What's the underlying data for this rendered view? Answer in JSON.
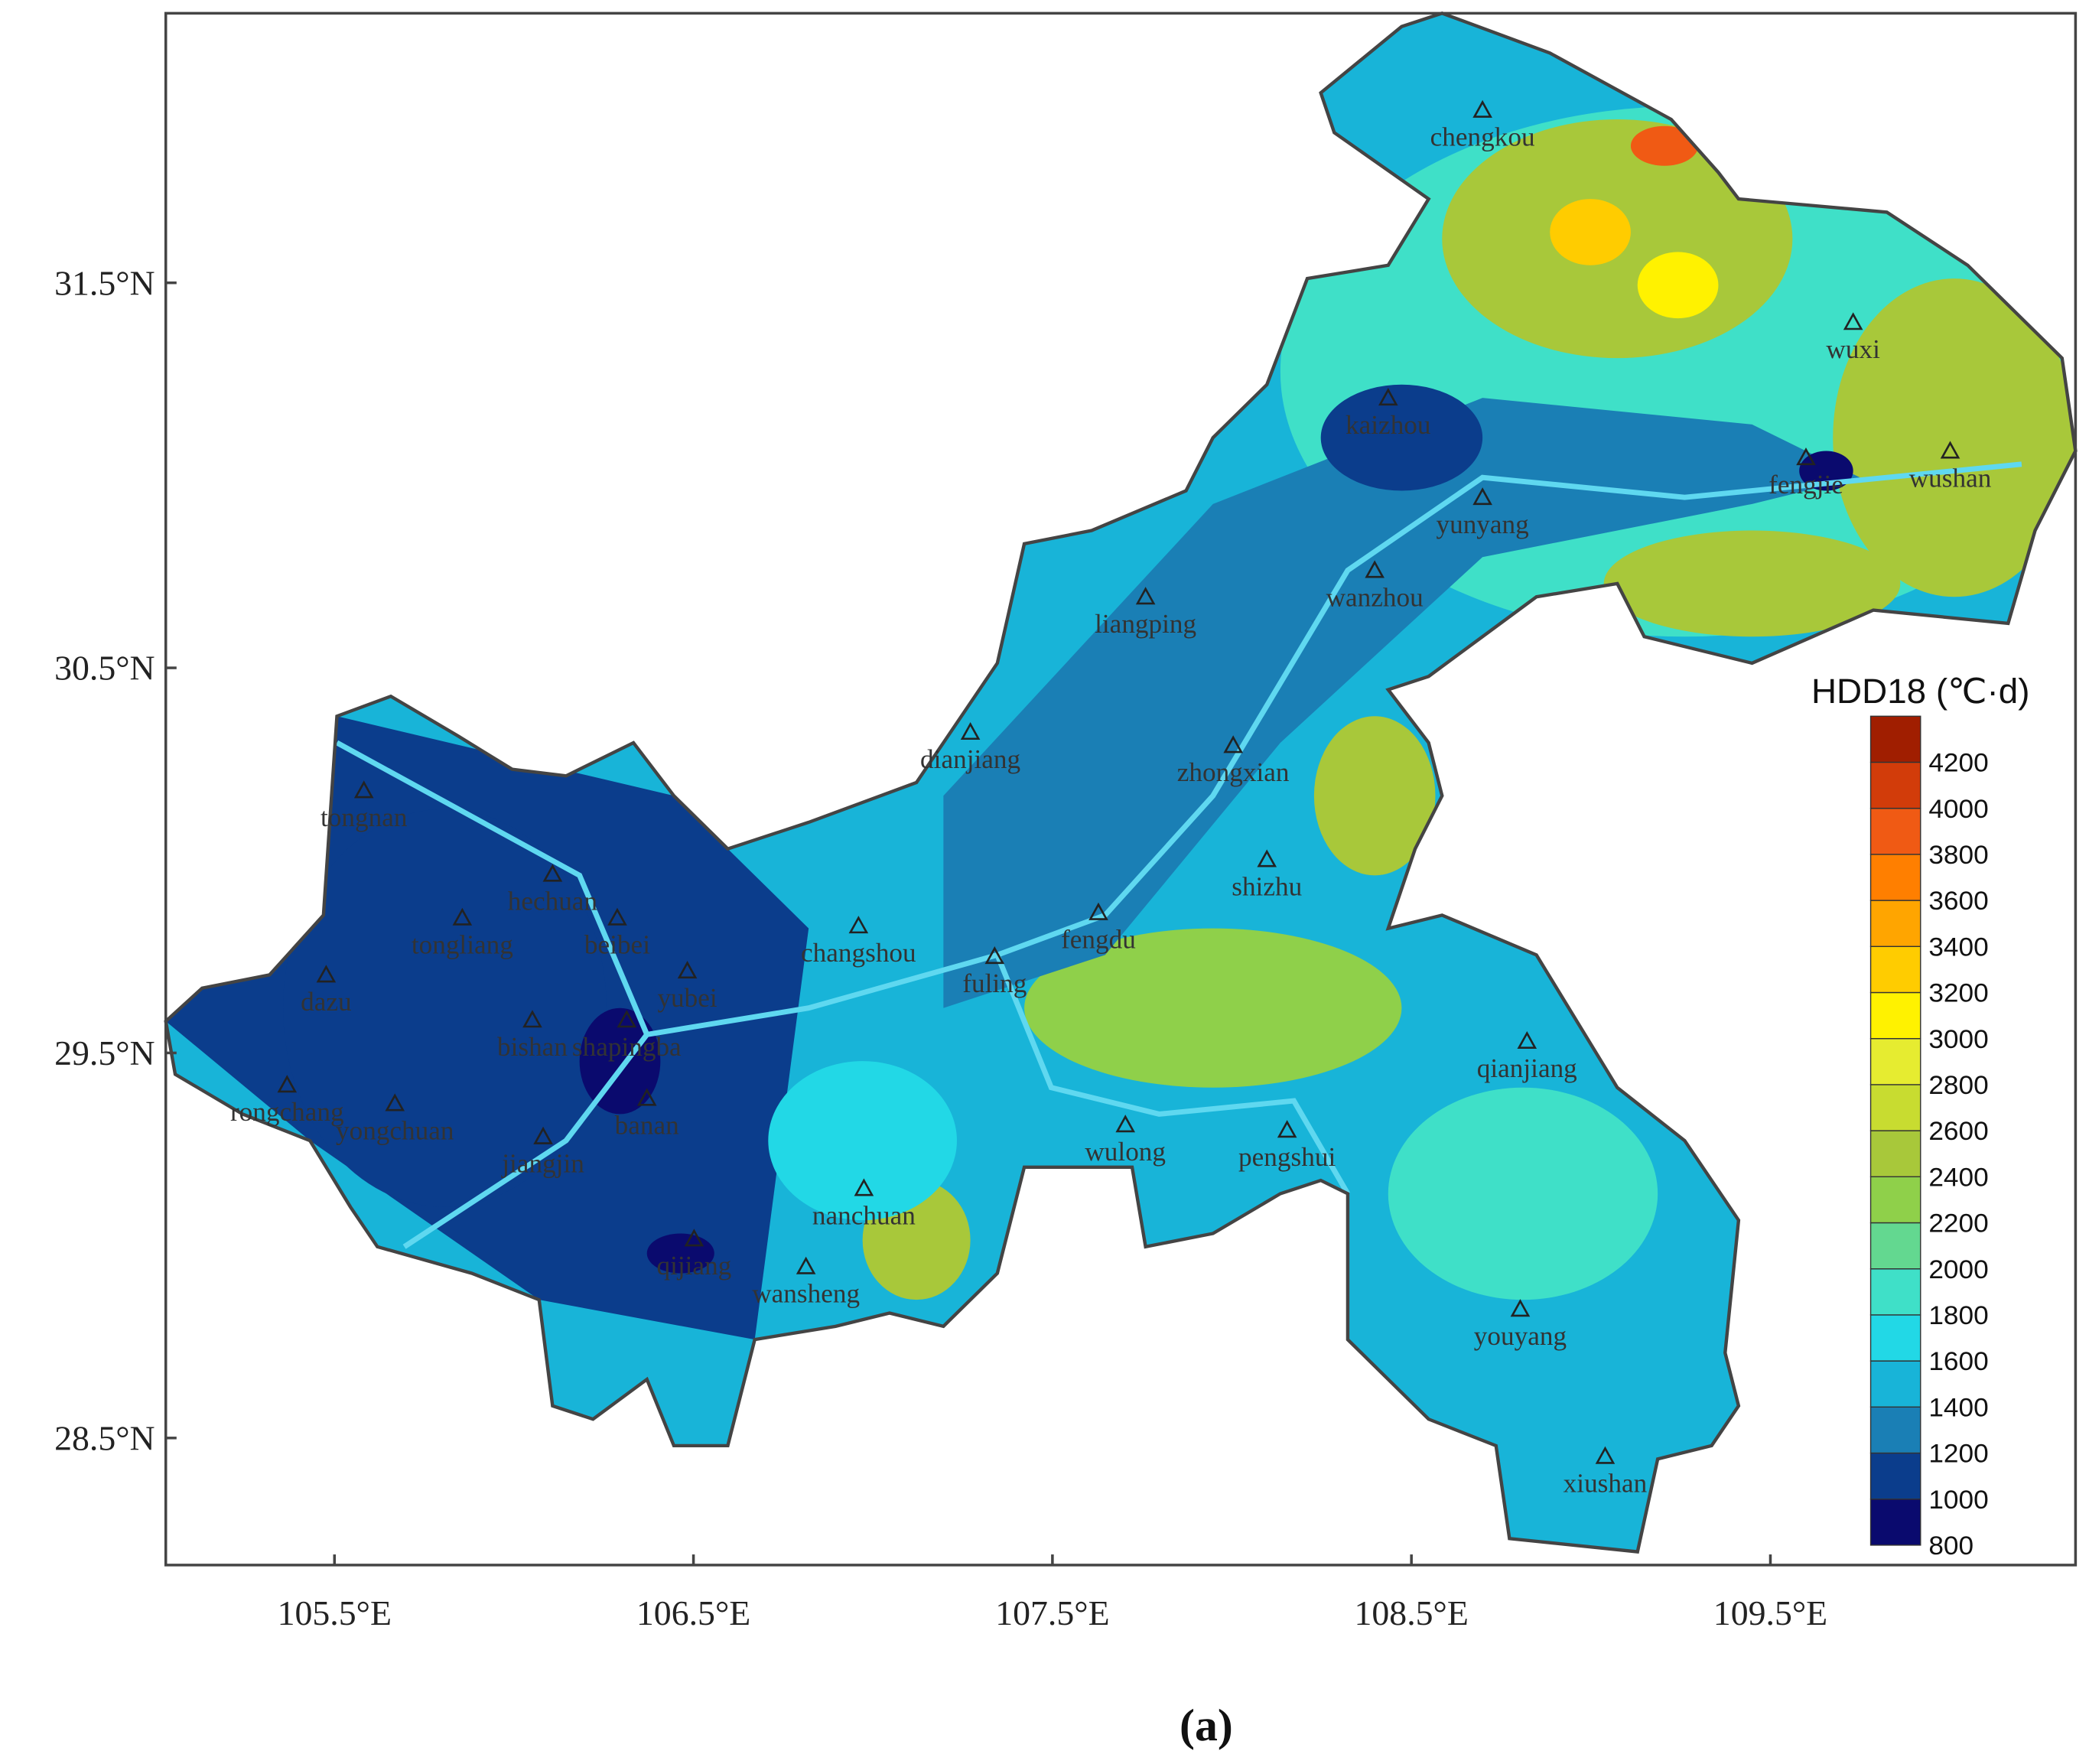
{
  "map": {
    "xaxis": {
      "lim": [
        105.03,
        110.35
      ],
      "ticks": [
        {
          "value": 105.5,
          "label": "105.5°E"
        },
        {
          "value": 106.5,
          "label": "106.5°E"
        },
        {
          "value": 107.5,
          "label": "107.5°E"
        },
        {
          "value": 108.5,
          "label": "108.5°E"
        },
        {
          "value": 109.5,
          "label": "109.5°E"
        }
      ]
    },
    "yaxis": {
      "lim": [
        28.17,
        32.2
      ],
      "ticks": [
        {
          "value": 28.5,
          "label": "28.5°N"
        },
        {
          "value": 29.5,
          "label": "29.5°N"
        },
        {
          "value": 30.5,
          "label": "30.5°N"
        },
        {
          "value": 31.5,
          "label": "31.5°N"
        }
      ]
    },
    "cities": [
      "chengkou",
      "wuxi",
      "kaizhou",
      "fengjie",
      "wushan",
      "yunyang",
      "wanzhou",
      "liangping",
      "dianjiang",
      "zhongxian",
      "tongnan",
      "shizhu",
      "hechuan",
      "tongliang",
      "beibei",
      "changshou",
      "fengdu",
      "fuling",
      "yubei",
      "dazu",
      "bishan",
      "shapingba",
      "qianjiang",
      "rongchang",
      "yongchuan",
      "banan",
      "wulong",
      "pengshui",
      "jiangjin",
      "nanchuan",
      "qijiang",
      "wansheng",
      "youyang",
      "xiushan"
    ],
    "colorbar": {
      "title": "HDD18 (℃·d)",
      "ticks": [
        800,
        1000,
        1200,
        1400,
        1600,
        1800,
        2000,
        2200,
        2400,
        2600,
        2800,
        3000,
        3200,
        3400,
        3600,
        3800,
        4000,
        4200
      ],
      "colors": [
        "#0a0a6e",
        "#0b3d8c",
        "#1a7fb5",
        "#18b4d8",
        "#22d8e6",
        "#3fe0c8",
        "#63d890",
        "#8fd04a",
        "#a8c83a",
        "#c8dc30",
        "#e6ec30",
        "#fff200",
        "#ffcc00",
        "#ffa500",
        "#ff7f00",
        "#f05a14",
        "#d23c0a",
        "#a01e00"
      ]
    },
    "caption": "(a)"
  }
}
